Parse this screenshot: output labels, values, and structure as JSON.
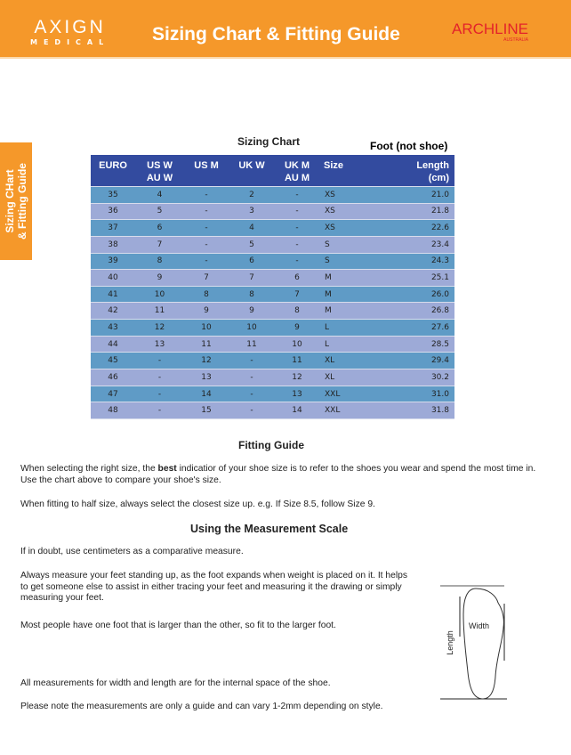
{
  "header": {
    "logo_main": "AXIGN",
    "logo_sub": "MEDICAL",
    "title": "Sizing Chart & Fitting Guide",
    "brand": "ARCHLINE",
    "brand_sub": "AUSTRALIA",
    "colors": {
      "orange": "#f5982a",
      "red": "#e3232a"
    }
  },
  "side_tab": {
    "line1": "Sizing CHart",
    "line2": "& Fitting Guide"
  },
  "sizing_chart": {
    "title": "Sizing Chart",
    "note": "Foot (not shoe)",
    "colors": {
      "header": "#334b9f",
      "row_a": "#5f9bc6",
      "row_b": "#9daad7"
    },
    "headers": [
      [
        "EURO",
        ""
      ],
      [
        "US W",
        "AU W"
      ],
      [
        "US M",
        ""
      ],
      [
        "UK W",
        ""
      ],
      [
        "UK M",
        "AU M"
      ],
      [
        "Size",
        ""
      ],
      [
        "Length",
        "(cm)"
      ]
    ],
    "rows": [
      [
        "35",
        "4",
        "-",
        "2",
        "-",
        "XS",
        "21.0"
      ],
      [
        "36",
        "5",
        "-",
        "3",
        "-",
        "XS",
        "21.8"
      ],
      [
        "37",
        "6",
        "-",
        "4",
        "-",
        "XS",
        "22.6"
      ],
      [
        "38",
        "7",
        "-",
        "5",
        "-",
        "S",
        "23.4"
      ],
      [
        "39",
        "8",
        "-",
        "6",
        "-",
        "S",
        "24.3"
      ],
      [
        "40",
        "9",
        "7",
        "7",
        "6",
        "M",
        "25.1"
      ],
      [
        "41",
        "10",
        "8",
        "8",
        "7",
        "M",
        "26.0"
      ],
      [
        "42",
        "11",
        "9",
        "9",
        "8",
        "M",
        "26.8"
      ],
      [
        "43",
        "12",
        "10",
        "10",
        "9",
        "L",
        "27.6"
      ],
      [
        "44",
        "13",
        "11",
        "11",
        "10",
        "L",
        "28.5"
      ],
      [
        "45",
        "-",
        "12",
        "-",
        "11",
        "XL",
        "29.4"
      ],
      [
        "46",
        "-",
        "13",
        "-",
        "12",
        "XL",
        "30.2"
      ],
      [
        "47",
        "-",
        "14",
        "-",
        "13",
        "XXL",
        "31.0"
      ],
      [
        "48",
        "-",
        "15",
        "-",
        "14",
        "XXL",
        "31.8"
      ]
    ]
  },
  "fitting": {
    "title": "Fitting Guide",
    "p1_pre": "When selecting the right size, the ",
    "p1_bold": "best",
    "p1_post": " indicatior of your shoe size is to refer to the shoes you wear and spend the most time in. Use the chart above to compare your shoe's size.",
    "p2": "When fitting to half size, always select the closest size up. e.g. If Size 8.5, follow Size 9."
  },
  "measurement": {
    "title": "Using the Measurement Scale",
    "p1": "If in doubt, use centimeters as a comparative measure.",
    "p2": "Always measure your feet standing up, as the foot expands when weight is placed on it. It helps to get someone else to assist in either tracing your feet and measuring it the drawing or simply measuring your feet.",
    "p3": "Most people have one foot that is larger than the other, so fit to the larger foot.",
    "p4": "All measurements for width and length are for the internal space of the shoe.",
    "p5": "Please note the measurements are only a guide and can vary 1-2mm depending on style.",
    "diagram_width": "Width",
    "diagram_length": "Length"
  }
}
